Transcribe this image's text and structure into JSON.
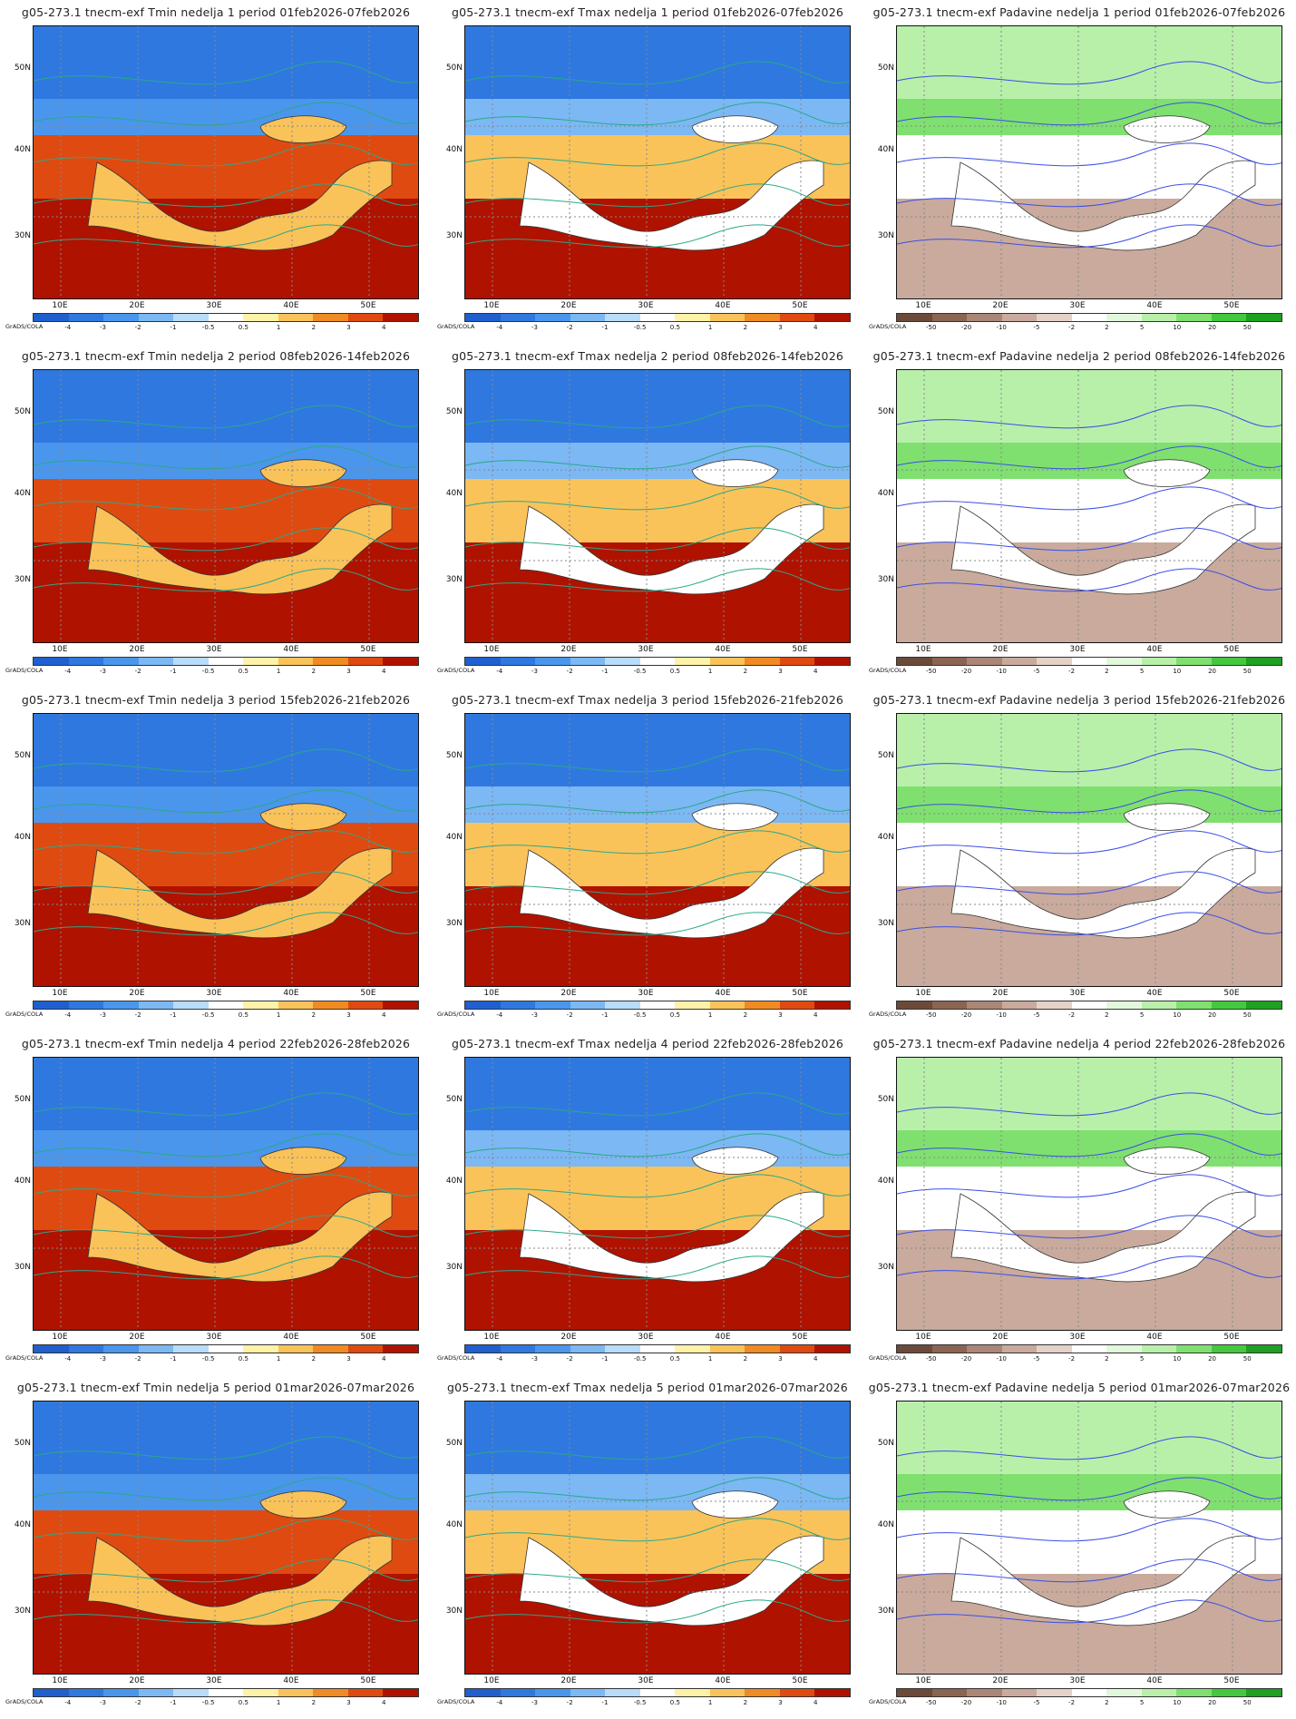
{
  "credit": "GrADS/COLA",
  "lat_labels": [
    "50N",
    "40N",
    "30N"
  ],
  "lon_labels": [
    "10E",
    "20E",
    "30E",
    "40E",
    "50E"
  ],
  "temp_scale": {
    "labels": [
      "-4",
      "-3",
      "-2",
      "-1",
      "-0.5",
      "0.5",
      "1",
      "2",
      "3",
      "4"
    ],
    "colors": [
      "#1f5fd0",
      "#2f78e0",
      "#4a96ec",
      "#7cb8f4",
      "#b8dcfa",
      "#ffffff",
      "#fdf2a8",
      "#f9c35a",
      "#f08a22",
      "#df4a10",
      "#b01200"
    ]
  },
  "precip_scale": {
    "labels": [
      "-50",
      "-20",
      "-10",
      "-5",
      "-2",
      "2",
      "5",
      "10",
      "20",
      "50"
    ],
    "colors": [
      "#6b4a3a",
      "#8c6452",
      "#ab8676",
      "#c9aa9c",
      "#e4d2c8",
      "#ffffff",
      "#e2f8dc",
      "#b8f0aa",
      "#7fe070",
      "#44c83e",
      "#1ea020"
    ]
  },
  "panels": [
    {
      "title": "g05-273.1 tnecm-exf Tmin nedelja 1 period 01feb2026-07feb2026",
      "kind": "tmin"
    },
    {
      "title": "g05-273.1 tnecm-exf Tmax nedelja 1 period 01feb2026-07feb2026",
      "kind": "tmax"
    },
    {
      "title": "g05-273.1 tnecm-exf Padavine nedelja 1 period 01feb2026-07feb2026",
      "kind": "precip"
    },
    {
      "title": "g05-273.1 tnecm-exf Tmin nedelja 2 period 08feb2026-14feb2026",
      "kind": "tmin"
    },
    {
      "title": "g05-273.1 tnecm-exf Tmax nedelja 2 period 08feb2026-14feb2026",
      "kind": "tmax"
    },
    {
      "title": "g05-273.1 tnecm-exf Padavine nedelja 2 period 08feb2026-14feb2026",
      "kind": "precip"
    },
    {
      "title": "g05-273.1 tnecm-exf Tmin nedelja 3 period 15feb2026-21feb2026",
      "kind": "tmin"
    },
    {
      "title": "g05-273.1 tnecm-exf Tmax nedelja 3 period 15feb2026-21feb2026",
      "kind": "tmax"
    },
    {
      "title": "g05-273.1 tnecm-exf Padavine nedelja 3 period 15feb2026-21feb2026",
      "kind": "precip"
    },
    {
      "title": "g05-273.1 tnecm-exf Tmin nedelja 4 period 22feb2026-28feb2026",
      "kind": "tmin"
    },
    {
      "title": "g05-273.1 tnecm-exf Tmax nedelja 4 period 22feb2026-28feb2026",
      "kind": "tmax"
    },
    {
      "title": "g05-273.1 tnecm-exf Padavine nedelja 4 period 22feb2026-28feb2026",
      "kind": "precip"
    },
    {
      "title": "g05-273.1 tnecm-exf Tmin nedelja 5 period 01mar2026-07mar2026",
      "kind": "tmin"
    },
    {
      "title": "g05-273.1 tnecm-exf Tmax nedelja 5 period 01mar2026-07mar2026",
      "kind": "tmax"
    },
    {
      "title": "g05-273.1 tnecm-exf Padavine nedelja 5 period 01mar2026-07mar2026",
      "kind": "precip"
    }
  ]
}
